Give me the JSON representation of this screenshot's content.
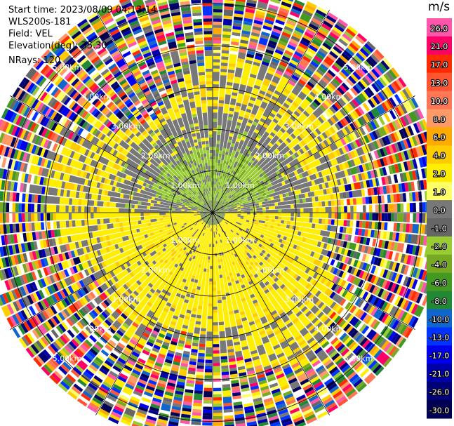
{
  "info": {
    "start_time": "Start time: 2023/08/09 04:13:14",
    "instrument": "WLS200s-181",
    "field": "Field: VEL",
    "elevation": "Elevation(deg): 35.30",
    "nrays": "NRays: 120"
  },
  "colorbar": {
    "unit": "m/s",
    "levels": [
      {
        "label": "26.0",
        "color": "#ff55aa"
      },
      {
        "label": "21.0",
        "color": "#ff0066"
      },
      {
        "label": "17.0",
        "color": "#ff2a00"
      },
      {
        "label": "13.0",
        "color": "#ff5533"
      },
      {
        "label": "10.0",
        "color": "#ff7755"
      },
      {
        "label": "8.0",
        "color": "#ff9966"
      },
      {
        "label": "6.0",
        "color": "#ffaa00"
      },
      {
        "label": "4.0",
        "color": "#ffcc00"
      },
      {
        "label": "2.0",
        "color": "#ffee00"
      },
      {
        "label": "1.0",
        "color": "#ffff66"
      },
      {
        "label": "0.0",
        "color": "#787878"
      },
      {
        "label": "-1.0",
        "color": "#666666"
      },
      {
        "label": "-2.0",
        "color": "#99cc33"
      },
      {
        "label": "-4.0",
        "color": "#77aa22"
      },
      {
        "label": "-6.0",
        "color": "#449922"
      },
      {
        "label": "-8.0",
        "color": "#228833"
      },
      {
        "label": "-10.0",
        "color": "#1166cc"
      },
      {
        "label": "-13.0",
        "color": "#0033ff"
      },
      {
        "label": "-17.0",
        "color": "#0000ee"
      },
      {
        "label": "-21.0",
        "color": "#0000aa"
      },
      {
        "label": "-26.0",
        "color": "#000077"
      },
      {
        "label": "-30.0",
        "color": "#000055"
      }
    ]
  },
  "chart_data": {
    "type": "heatmap",
    "subtype": "polar PPI scan",
    "field": "VEL",
    "units": "m/s",
    "nrays": 120,
    "elevation_deg": 35.3,
    "range_rings_km": [
      1.0,
      2.0,
      3.0,
      4.0,
      5.0
    ],
    "ring_labels": [
      "1.00km",
      "2.00km",
      "3.00km",
      "4.00km",
      "5.00km"
    ],
    "max_range_km": 5.6,
    "colorbar_ticks": [
      26.0,
      21.0,
      17.0,
      13.0,
      10.0,
      8.0,
      6.0,
      4.0,
      2.0,
      1.0,
      0.0,
      -1.0,
      -2.0,
      -4.0,
      -6.0,
      -8.0,
      -10.0,
      -13.0,
      -17.0,
      -21.0,
      -26.0,
      -30.0
    ],
    "velocity_pattern": {
      "near_range_north": "-2.0 to -4.0 (green)",
      "near_range_south": "1.0 to 2.0 (yellow)",
      "mid_range_north": "0.0 to 4.0 (grey/yellow)",
      "mid_range_south": "0.0 to 2.0 (yellow/grey)",
      "far_range": "noise, all bins"
    }
  }
}
